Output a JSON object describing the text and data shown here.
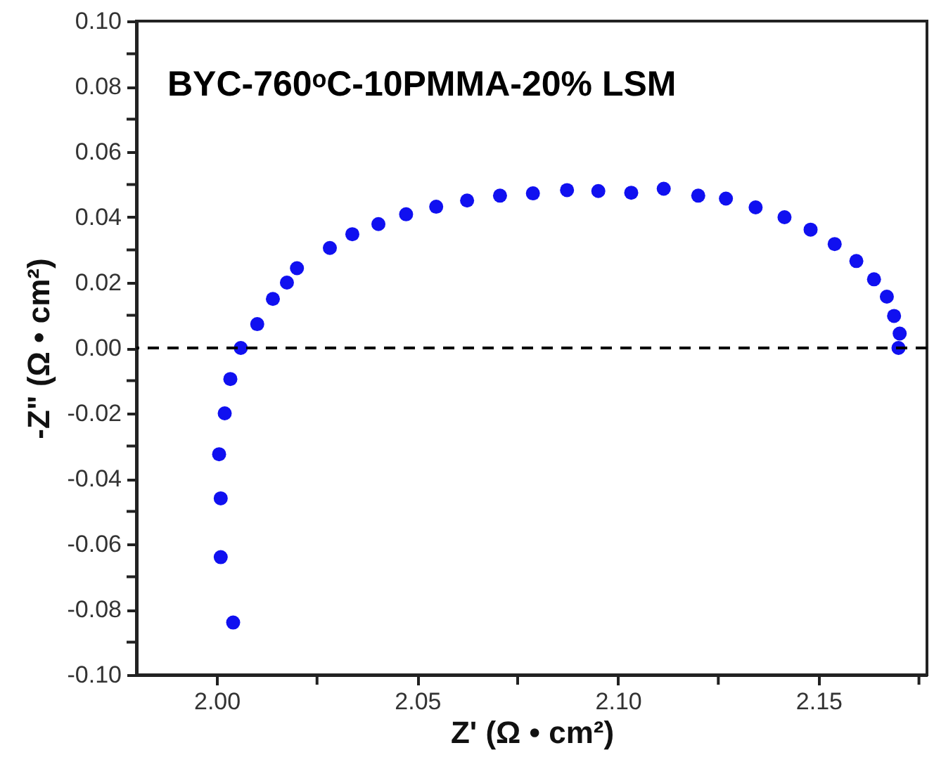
{
  "chart_data": {
    "type": "scatter",
    "xlabel": "Z' (Ω • cm²)",
    "ylabel": "-Z\" (Ω • cm²)",
    "annotations": [
      "BYC-760ᵒC-10PMMA-20% LSM"
    ],
    "x": [
      2.0041,
      2.001,
      2.001,
      2.0006,
      2.002,
      2.0034,
      2.006,
      2.0101,
      2.014,
      2.0175,
      2.02,
      2.0282,
      2.0338,
      2.0403,
      2.0472,
      2.0547,
      2.0624,
      2.0706,
      2.0788,
      2.0873,
      2.0951,
      2.1033,
      2.1114,
      2.12,
      2.1269,
      2.1343,
      2.1415,
      2.148,
      2.154,
      2.1594,
      2.1638,
      2.167,
      2.1688,
      2.1702,
      2.1699
    ],
    "series": [
      {
        "color": "#1010f0",
        "values": [
          -0.084,
          -0.064,
          -0.046,
          -0.0325,
          -0.02,
          -0.0095,
          0.0,
          0.0073,
          0.015,
          0.02,
          0.0244,
          0.0306,
          0.0348,
          0.0379,
          0.0409,
          0.0432,
          0.0451,
          0.0466,
          0.0473,
          0.0483,
          0.048,
          0.0475,
          0.0487,
          0.0466,
          0.0457,
          0.043,
          0.04,
          0.0362,
          0.0318,
          0.0266,
          0.021,
          0.0157,
          0.0098,
          0.0044,
          0.0
        ]
      }
    ],
    "marker": "circle",
    "grid": false,
    "xlim": [
      1.98,
      2.177
    ],
    "xticks": [
      {
        "value": 2.0,
        "label": "2.00"
      },
      {
        "value": 2.025,
        "label": null
      },
      {
        "value": 2.05,
        "label": "2.05"
      },
      {
        "value": 2.075,
        "label": null
      },
      {
        "value": 2.1,
        "label": "2.10"
      },
      {
        "value": 2.125,
        "label": null
      },
      {
        "value": 2.15,
        "label": "2.15"
      },
      {
        "value": 2.175,
        "label": null
      }
    ],
    "ylim": [
      -0.1,
      0.1
    ],
    "yticks": [
      {
        "value": -0.1,
        "label": "-0.10"
      },
      {
        "value": -0.09,
        "label": null
      },
      {
        "value": -0.08,
        "label": "-0.08"
      },
      {
        "value": -0.07,
        "label": null
      },
      {
        "value": -0.06,
        "label": "-0.06"
      },
      {
        "value": -0.05,
        "label": null
      },
      {
        "value": -0.04,
        "label": "-0.04"
      },
      {
        "value": -0.03,
        "label": null
      },
      {
        "value": -0.02,
        "label": "-0.02"
      },
      {
        "value": -0.01,
        "label": null
      },
      {
        "value": 0,
        "label": "0.00"
      },
      {
        "value": 0.01,
        "label": null
      },
      {
        "value": 0.02,
        "label": "0.02"
      },
      {
        "value": 0.03,
        "label": null
      },
      {
        "value": 0.04,
        "label": "0.04"
      },
      {
        "value": 0.05,
        "label": null
      },
      {
        "value": 0.06,
        "label": "0.06"
      },
      {
        "value": 0.07,
        "label": null
      },
      {
        "value": 0.08,
        "label": "0.08"
      },
      {
        "value": 0.09,
        "label": null
      },
      {
        "value": 0.1,
        "label": "0.10"
      }
    ],
    "ref_lines": [
      {
        "axis": "y",
        "value": 0,
        "line_style": "dashed",
        "color": "#000000"
      }
    ]
  }
}
